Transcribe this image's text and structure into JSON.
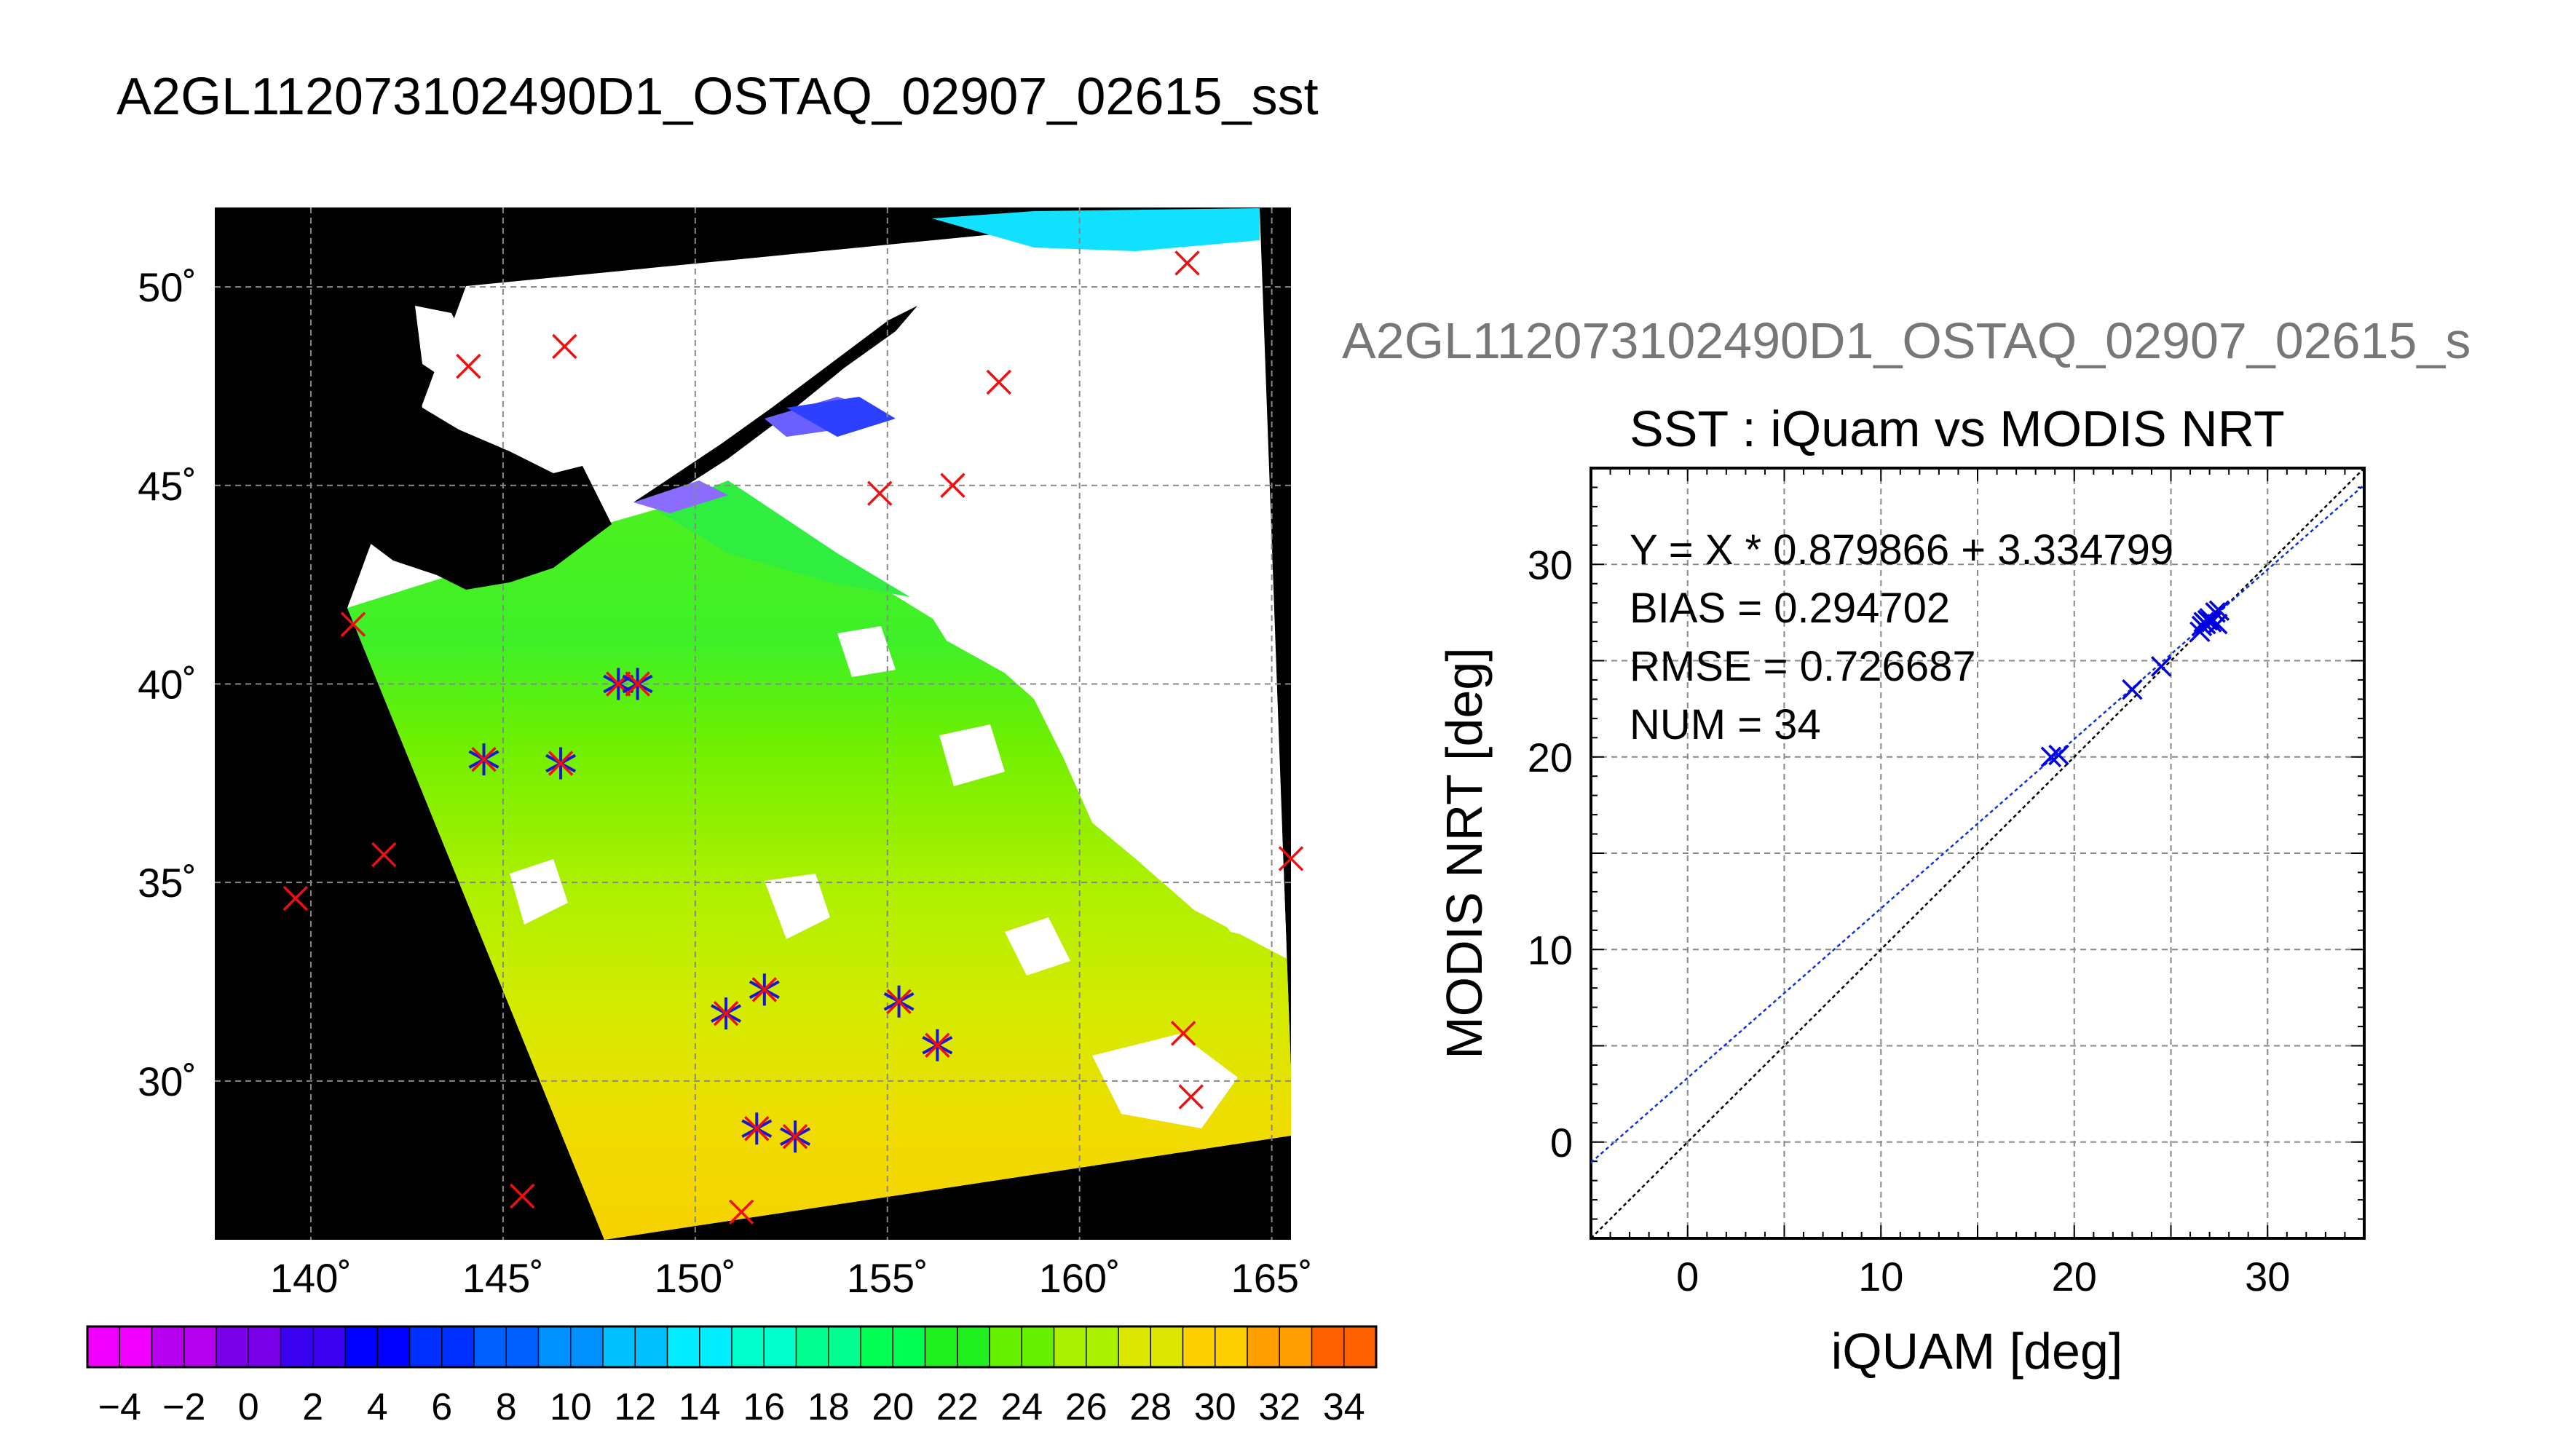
{
  "title": "A2GL112073102490D1_OSTAQ_02907_02615_sst",
  "chart_data": [
    {
      "type": "map",
      "lon_ticks": [
        140,
        145,
        150,
        155,
        160,
        165
      ],
      "lat_ticks": [
        30,
        35,
        40,
        45,
        50
      ],
      "lon_tick_labels": [
        "140˚",
        "145˚",
        "150˚",
        "155˚",
        "160˚",
        "165˚"
      ],
      "lat_tick_labels": [
        "30˚",
        "35˚",
        "40˚",
        "45˚",
        "50˚"
      ],
      "lon_range": [
        137.5,
        165.5
      ],
      "lat_range": [
        26,
        52
      ],
      "grid": true,
      "matchup_markers_lonlat": [
        [
          144.5,
          38.1
        ],
        [
          146.5,
          38.0
        ],
        [
          148.0,
          40.0
        ],
        [
          148.5,
          40.0
        ],
        [
          150.8,
          31.7
        ],
        [
          151.8,
          32.3
        ],
        [
          155.3,
          32.0
        ],
        [
          156.3,
          30.9
        ],
        [
          151.6,
          28.8
        ],
        [
          152.6,
          28.6
        ]
      ],
      "insitu_only_markers_lonlat": [
        [
          144.1,
          48.0
        ],
        [
          146.6,
          48.5
        ],
        [
          162.8,
          50.6
        ],
        [
          157.9,
          47.6
        ],
        [
          156.7,
          45.0
        ],
        [
          154.8,
          44.8
        ],
        [
          141.1,
          41.5
        ],
        [
          141.9,
          35.7
        ],
        [
          139.6,
          34.6
        ],
        [
          162.7,
          31.2
        ],
        [
          162.9,
          29.6
        ],
        [
          145.5,
          27.1
        ],
        [
          151.2,
          26.7
        ],
        [
          165.5,
          35.6
        ]
      ],
      "colorbar": {
        "min": -5,
        "max": 35,
        "step": 2,
        "tick_labels": [
          "−4",
          "−2",
          "0",
          "2",
          "4",
          "6",
          "8",
          "10",
          "12",
          "14",
          "16",
          "18",
          "20",
          "22",
          "24",
          "26",
          "28",
          "30",
          "32",
          "34"
        ],
        "colors": [
          "#f000ff",
          "#b800f0",
          "#7a00e8",
          "#3a00f0",
          "#0000ff",
          "#0030ff",
          "#0060ff",
          "#0090ff",
          "#00c0ff",
          "#00eeff",
          "#00ffcc",
          "#00ff90",
          "#00ff50",
          "#20f020",
          "#66f000",
          "#aaf000",
          "#dde800",
          "#ffd000",
          "#ffa000",
          "#ff6000",
          "#ff2000"
        ]
      }
    },
    {
      "type": "scatter",
      "subtitle": "A2GL112073102490D1_OSTAQ_02907_02615_s",
      "title": "SST : iQuam vs MODIS NRT",
      "xlabel": "iQUAM [deg]",
      "ylabel": "MODIS NRT [deg]",
      "xlim": [
        -5,
        35
      ],
      "ylim": [
        -5,
        35
      ],
      "x_ticks": [
        0,
        10,
        20,
        30
      ],
      "y_ticks": [
        0,
        10,
        20,
        30
      ],
      "grid": true,
      "stats": [
        "Y = X * 0.879866 + 3.334799",
        "BIAS = 0.294702",
        "RMSE = 0.726687",
        "NUM = 34"
      ],
      "regression": {
        "slope": 0.879866,
        "intercept": 3.334799
      },
      "points": [
        [
          18.8,
          20.0
        ],
        [
          19.2,
          20.1
        ],
        [
          23.0,
          23.5
        ],
        [
          24.5,
          24.7
        ],
        [
          26.5,
          26.5
        ],
        [
          26.6,
          26.8
        ],
        [
          26.7,
          27.0
        ],
        [
          26.8,
          26.9
        ],
        [
          26.9,
          27.1
        ],
        [
          27.0,
          27.2
        ],
        [
          27.1,
          27.0
        ],
        [
          27.3,
          27.5
        ],
        [
          27.4,
          26.9
        ],
        [
          27.5,
          27.6
        ]
      ],
      "series_colors": {
        "points": "#0000e0",
        "regression": "#1030e0",
        "identity": "#000000"
      }
    }
  ]
}
